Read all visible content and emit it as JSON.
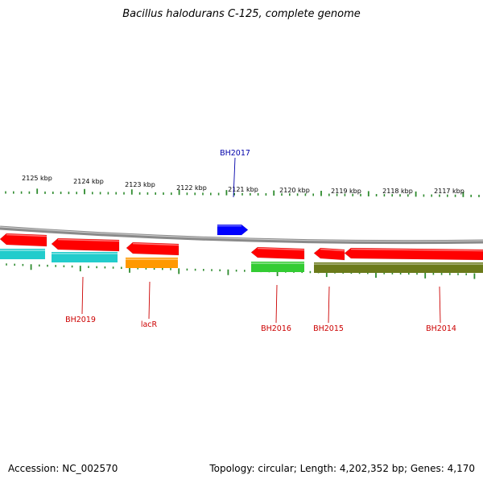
{
  "title": "Bacillus halodurans C-125, complete genome",
  "footer": {
    "accession": "Accession: NC_002570",
    "topology": "Topology: circular; Length: 4,202,352 bp; Genes: 4,170"
  },
  "colors": {
    "backbone": "#888888",
    "tick": "#2e8b2e",
    "label_top": "#0000aa",
    "label_bottom": "#cc0000"
  },
  "tick_labels": [
    "2125 kbp",
    "2124 kbp",
    "2123 kbp",
    "2122 kbp",
    "2121 kbp",
    "2120 kbp",
    "2119 kbp",
    "2118 kbp",
    "2117 kbp"
  ],
  "genes": [
    {
      "name": "BH2017",
      "strand": "+",
      "color": "#0000ff",
      "label": "BH2017"
    },
    {
      "name": "BH2019",
      "strand": "-",
      "color": "#ff0000",
      "label": "BH2019"
    },
    {
      "name": "lacR",
      "strand": "-",
      "color": "#ff0000",
      "label": "lacR"
    },
    {
      "name": "BH2016",
      "strand": "-",
      "color": "#ff0000",
      "label": "BH2016"
    },
    {
      "name": "BH2015",
      "strand": "-",
      "color": "#ff0000",
      "label": "BH2015"
    },
    {
      "name": "BH2014",
      "strand": "-",
      "color": "#ff0000",
      "label": "BH2014"
    }
  ],
  "cog_bars": [
    {
      "gene": "BH2019",
      "color": "#22cccc"
    },
    {
      "gene": "lacR",
      "color": "#ff9900"
    },
    {
      "gene": "BH2016",
      "color": "#33cc33"
    },
    {
      "gene": "BH2015",
      "color": "#6b7a1a"
    },
    {
      "gene": "BH2014",
      "color": "#6b7a1a"
    }
  ]
}
